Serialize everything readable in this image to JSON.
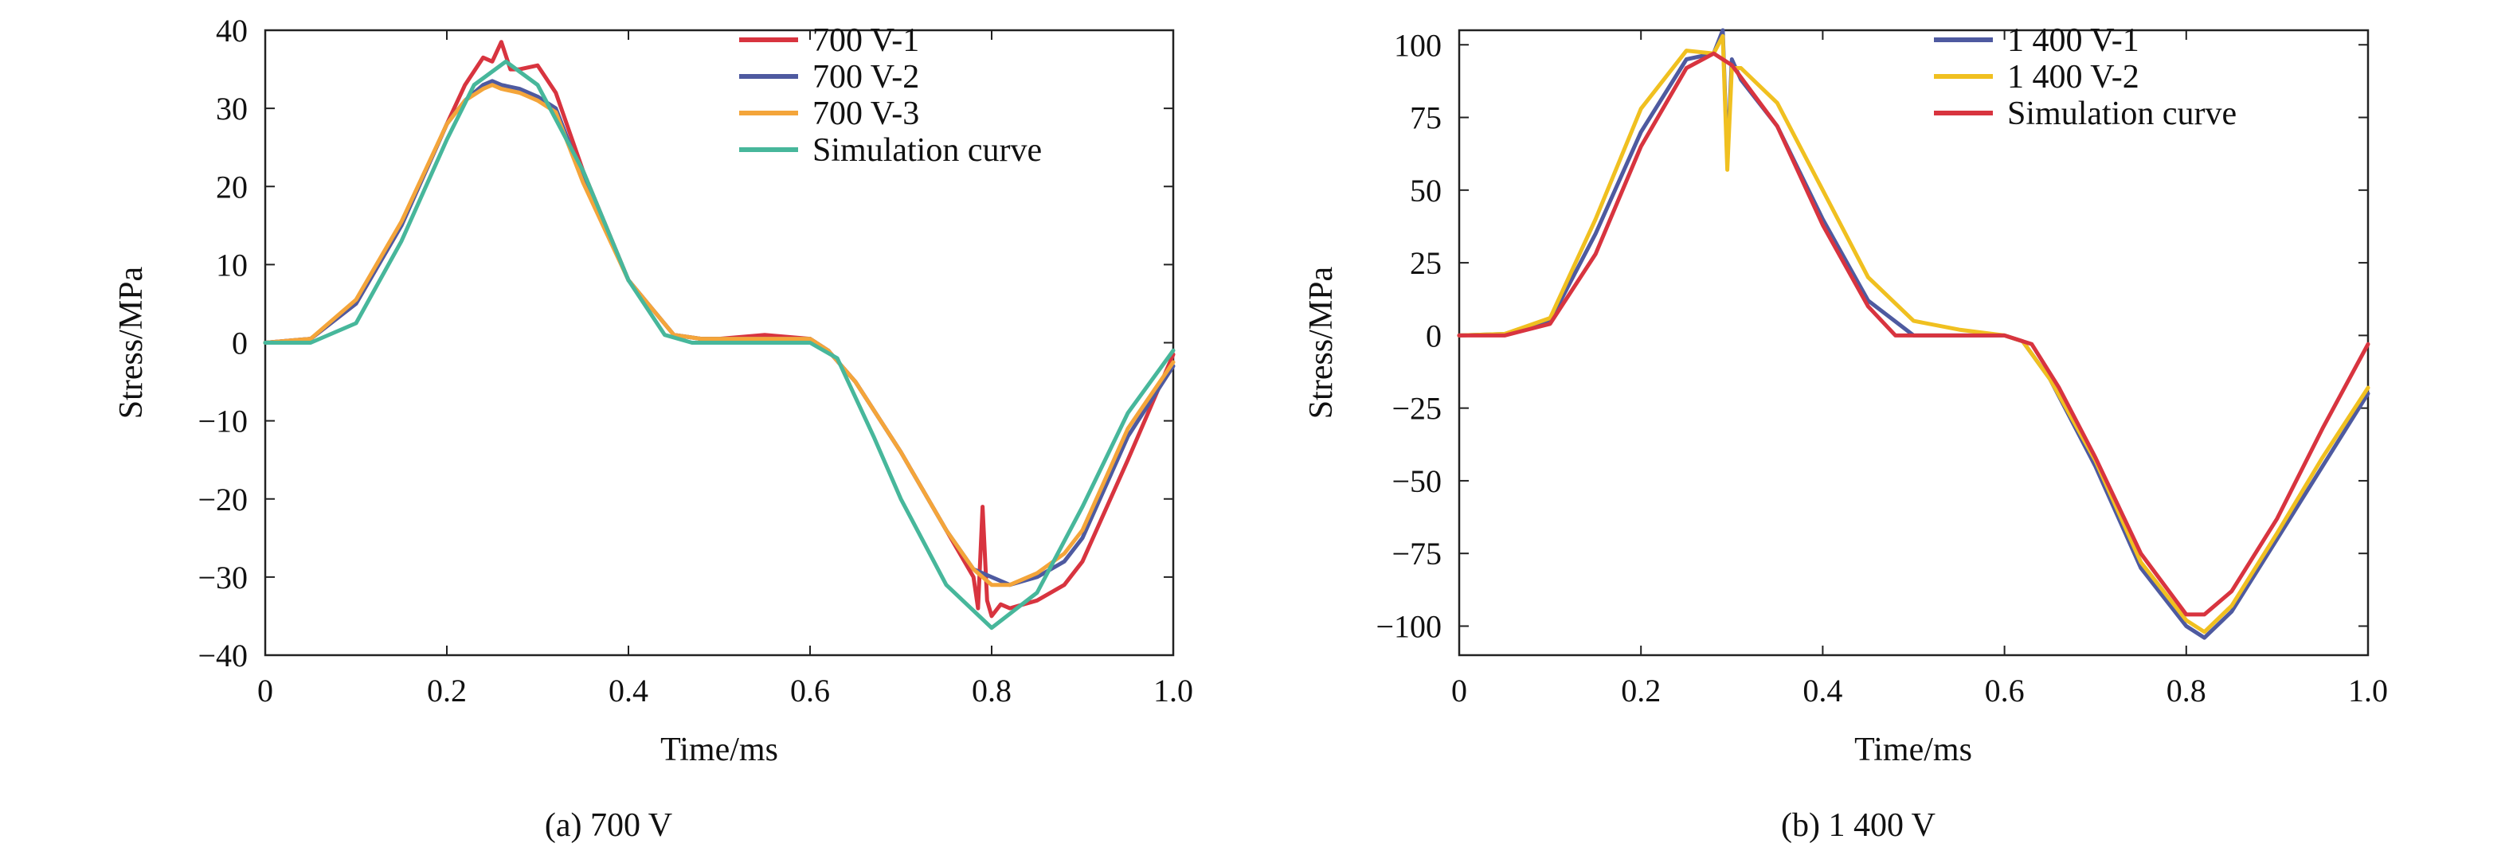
{
  "chart_data": [
    {
      "type": "line",
      "caption": "(a) 700 V",
      "xlabel": "Time/ms",
      "ylabel": "Stress/MPa",
      "xlim": [
        0,
        1.0
      ],
      "ylim": [
        -40,
        40
      ],
      "xticks": [
        0,
        0.2,
        0.4,
        0.6,
        0.8,
        1.0
      ],
      "xtick_labels": [
        "0",
        "0.2",
        "0.4",
        "0.6",
        "0.8",
        "1.0"
      ],
      "yticks": [
        40,
        30,
        20,
        10,
        0,
        -10,
        -20,
        -30,
        -40
      ],
      "ytick_labels": [
        "40",
        "30",
        "20",
        "10",
        "0",
        "−10",
        "−20",
        "−30",
        "−40"
      ],
      "grid": false,
      "legend_position": "top-right",
      "series": [
        {
          "name": "700 V-1",
          "color": "#d8343f",
          "x": [
            0,
            0.05,
            0.1,
            0.15,
            0.2,
            0.22,
            0.24,
            0.25,
            0.26,
            0.27,
            0.28,
            0.3,
            0.32,
            0.35,
            0.4,
            0.45,
            0.48,
            0.5,
            0.55,
            0.6,
            0.62,
            0.65,
            0.7,
            0.75,
            0.78,
            0.785,
            0.79,
            0.795,
            0.8,
            0.81,
            0.82,
            0.85,
            0.88,
            0.9,
            0.95,
            1.0
          ],
          "y": [
            0,
            0.5,
            5,
            15,
            28,
            33,
            36.5,
            36,
            38.5,
            35,
            35,
            35.5,
            32,
            22,
            8,
            1,
            0.5,
            0.5,
            1,
            0.5,
            -1,
            -5,
            -14,
            -24,
            -30,
            -34,
            -21,
            -33,
            -35,
            -33.5,
            -34,
            -33,
            -31,
            -28,
            -15,
            -1.5
          ]
        },
        {
          "name": "700 V-2",
          "color": "#4e5aa0",
          "x": [
            0,
            0.05,
            0.1,
            0.15,
            0.2,
            0.22,
            0.24,
            0.25,
            0.26,
            0.28,
            0.3,
            0.32,
            0.35,
            0.4,
            0.45,
            0.48,
            0.5,
            0.55,
            0.6,
            0.62,
            0.65,
            0.7,
            0.75,
            0.78,
            0.8,
            0.82,
            0.85,
            0.88,
            0.9,
            0.95,
            1.0
          ],
          "y": [
            0,
            0.5,
            5,
            15,
            28,
            31,
            33,
            33.5,
            33,
            32.5,
            31.5,
            30,
            21,
            8,
            1,
            0.5,
            0.5,
            0.5,
            0.5,
            -1,
            -5,
            -14,
            -24,
            -29,
            -30,
            -31,
            -30,
            -28,
            -25,
            -12,
            -3
          ]
        },
        {
          "name": "700 V-3",
          "color": "#f4a53a",
          "x": [
            0,
            0.05,
            0.1,
            0.15,
            0.2,
            0.22,
            0.24,
            0.25,
            0.26,
            0.28,
            0.3,
            0.32,
            0.35,
            0.4,
            0.45,
            0.48,
            0.5,
            0.55,
            0.6,
            0.62,
            0.65,
            0.7,
            0.75,
            0.78,
            0.8,
            0.82,
            0.85,
            0.88,
            0.9,
            0.95,
            1.0
          ],
          "y": [
            0,
            0.5,
            5.5,
            15.5,
            28,
            31,
            32.5,
            33,
            32.5,
            32,
            31,
            29.5,
            20.5,
            8,
            1,
            0.5,
            0.5,
            0.5,
            0.5,
            -1,
            -5,
            -14,
            -24,
            -29,
            -31,
            -31,
            -29.5,
            -27,
            -24,
            -11,
            -2.5
          ]
        },
        {
          "name": "Simulation curve",
          "color": "#47b79b",
          "x": [
            0,
            0.05,
            0.1,
            0.15,
            0.2,
            0.23,
            0.265,
            0.3,
            0.35,
            0.4,
            0.44,
            0.47,
            0.5,
            0.55,
            0.6,
            0.63,
            0.67,
            0.7,
            0.75,
            0.8,
            0.85,
            0.9,
            0.95,
            1.0
          ],
          "y": [
            0,
            0,
            2.5,
            13,
            26,
            33,
            36,
            33,
            22,
            8,
            1,
            0,
            0,
            0,
            0,
            -2,
            -12,
            -20,
            -31,
            -36.5,
            -32,
            -21,
            -9,
            -1
          ]
        }
      ]
    },
    {
      "type": "line",
      "caption": "(b) 1 400 V",
      "xlabel": "Time/ms",
      "ylabel": "Stress/MPa",
      "xlim": [
        0,
        1.0
      ],
      "ylim": [
        -110,
        105
      ],
      "xticks": [
        0,
        0.2,
        0.4,
        0.6,
        0.8,
        1.0
      ],
      "xtick_labels": [
        "0",
        "0.2",
        "0.4",
        "0.6",
        "0.8",
        "1.0"
      ],
      "yticks": [
        100,
        75,
        50,
        25,
        0,
        -25,
        -50,
        -75,
        -100
      ],
      "ytick_labels": [
        "100",
        "75",
        "50",
        "25",
        "0",
        "−25",
        "−50",
        "−75",
        "−100"
      ],
      "grid": false,
      "legend_position": "top-right",
      "series": [
        {
          "name": "1 400 V-1",
          "color": "#4e5aa0",
          "x": [
            0,
            0.05,
            0.1,
            0.15,
            0.2,
            0.25,
            0.28,
            0.29,
            0.295,
            0.3,
            0.31,
            0.35,
            0.4,
            0.45,
            0.5,
            0.55,
            0.6,
            0.62,
            0.65,
            0.7,
            0.75,
            0.8,
            0.82,
            0.85,
            0.9,
            0.95,
            1.0
          ],
          "y": [
            0,
            0.5,
            5,
            35,
            70,
            95,
            97,
            105,
            60,
            95,
            88,
            72,
            40,
            12,
            0,
            0,
            0,
            -2,
            -15,
            -45,
            -80,
            -100,
            -104,
            -95,
            -70,
            -45,
            -20
          ]
        },
        {
          "name": "1 400 V-2",
          "color": "#f0c020",
          "x": [
            0,
            0.05,
            0.1,
            0.15,
            0.2,
            0.25,
            0.28,
            0.29,
            0.295,
            0.3,
            0.31,
            0.35,
            0.4,
            0.45,
            0.5,
            0.55,
            0.6,
            0.62,
            0.65,
            0.7,
            0.75,
            0.8,
            0.82,
            0.85,
            0.9,
            0.95,
            1.0
          ],
          "y": [
            0,
            0.5,
            6,
            40,
            78,
            98,
            97,
            103,
            57,
            92,
            92,
            80,
            50,
            20,
            5,
            2,
            0,
            -2,
            -15,
            -43,
            -78,
            -98,
            -102,
            -93,
            -68,
            -42,
            -18
          ]
        },
        {
          "name": "Simulation curve",
          "color": "#d8343f",
          "x": [
            0,
            0.05,
            0.1,
            0.15,
            0.2,
            0.25,
            0.28,
            0.3,
            0.35,
            0.4,
            0.45,
            0.48,
            0.5,
            0.55,
            0.6,
            0.63,
            0.66,
            0.7,
            0.75,
            0.8,
            0.82,
            0.85,
            0.9,
            0.95,
            1.0
          ],
          "y": [
            0,
            0,
            4,
            28,
            65,
            92,
            97,
            93,
            72,
            38,
            10,
            0,
            0,
            0,
            0,
            -3,
            -18,
            -42,
            -75,
            -96,
            -96,
            -88,
            -63,
            -32,
            -3
          ]
        }
      ]
    }
  ]
}
